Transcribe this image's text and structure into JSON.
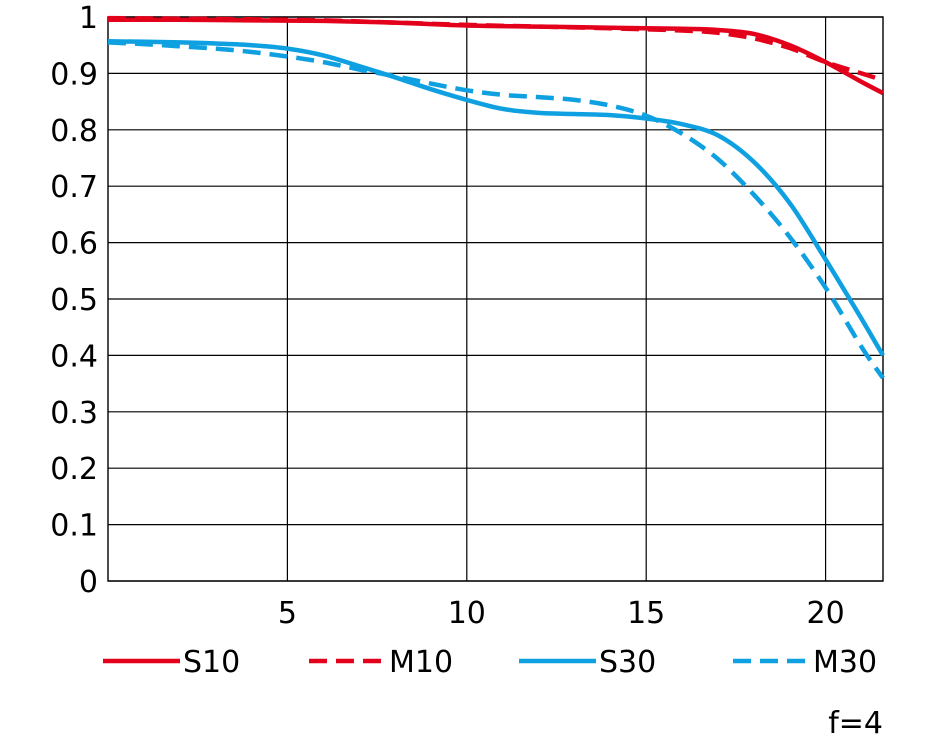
{
  "chart_data": {
    "type": "line",
    "title": "",
    "xlabel": "",
    "ylabel": "",
    "xlim": [
      0,
      21.6
    ],
    "ylim": [
      0,
      1
    ],
    "x_ticks": [
      5,
      10,
      15,
      20
    ],
    "y_ticks": [
      0,
      0.1,
      0.2,
      0.3,
      0.4,
      0.5,
      0.6,
      0.7,
      0.8,
      0.9,
      1
    ],
    "x_tick_labels": [
      "5",
      "10",
      "15",
      "20"
    ],
    "y_tick_labels": [
      "0",
      "0.1",
      "0.2",
      "0.3",
      "0.4",
      "0.5",
      "0.6",
      "0.7",
      "0.8",
      "0.9",
      "1"
    ],
    "grid": true,
    "legend_position": "bottom",
    "annotation": "f=4",
    "colors": {
      "red": "#e3001b",
      "blue": "#0ea0e0",
      "grid": "#000000"
    },
    "series": [
      {
        "name": "S10",
        "color": "#e3001b",
        "dash": "solid",
        "points": [
          [
            0,
            0.995
          ],
          [
            2,
            0.995
          ],
          [
            4,
            0.994
          ],
          [
            6,
            0.993
          ],
          [
            8,
            0.99
          ],
          [
            10,
            0.985
          ],
          [
            12,
            0.983
          ],
          [
            14,
            0.981
          ],
          [
            16,
            0.979
          ],
          [
            17,
            0.977
          ],
          [
            18,
            0.97
          ],
          [
            19,
            0.95
          ],
          [
            20,
            0.92
          ],
          [
            21,
            0.885
          ],
          [
            21.6,
            0.865
          ]
        ]
      },
      {
        "name": "M10",
        "color": "#e3001b",
        "dash": "dashed",
        "points": [
          [
            0,
            0.998
          ],
          [
            2,
            0.997
          ],
          [
            4,
            0.996
          ],
          [
            6,
            0.994
          ],
          [
            8,
            0.99
          ],
          [
            10,
            0.986
          ],
          [
            12,
            0.983
          ],
          [
            14,
            0.98
          ],
          [
            16,
            0.976
          ],
          [
            17,
            0.972
          ],
          [
            18,
            0.962
          ],
          [
            19,
            0.945
          ],
          [
            20,
            0.92
          ],
          [
            21,
            0.9
          ],
          [
            21.6,
            0.888
          ]
        ]
      },
      {
        "name": "S30",
        "color": "#0ea0e0",
        "dash": "solid",
        "points": [
          [
            0,
            0.957
          ],
          [
            2,
            0.955
          ],
          [
            3,
            0.953
          ],
          [
            4,
            0.95
          ],
          [
            5,
            0.944
          ],
          [
            6,
            0.932
          ],
          [
            7,
            0.913
          ],
          [
            8,
            0.893
          ],
          [
            9,
            0.872
          ],
          [
            10,
            0.853
          ],
          [
            11,
            0.837
          ],
          [
            12,
            0.83
          ],
          [
            13,
            0.828
          ],
          [
            14,
            0.826
          ],
          [
            15,
            0.82
          ],
          [
            16,
            0.81
          ],
          [
            17,
            0.79
          ],
          [
            18,
            0.743
          ],
          [
            19,
            0.67
          ],
          [
            20,
            0.57
          ],
          [
            21,
            0.465
          ],
          [
            21.6,
            0.4
          ]
        ]
      },
      {
        "name": "M30",
        "color": "#0ea0e0",
        "dash": "dashed",
        "points": [
          [
            0,
            0.955
          ],
          [
            1,
            0.952
          ],
          [
            2,
            0.948
          ],
          [
            3,
            0.944
          ],
          [
            4,
            0.938
          ],
          [
            5,
            0.93
          ],
          [
            6,
            0.92
          ],
          [
            7,
            0.907
          ],
          [
            8,
            0.895
          ],
          [
            9,
            0.882
          ],
          [
            10,
            0.87
          ],
          [
            11,
            0.862
          ],
          [
            12,
            0.858
          ],
          [
            13,
            0.853
          ],
          [
            14,
            0.843
          ],
          [
            15,
            0.825
          ],
          [
            16,
            0.793
          ],
          [
            17,
            0.748
          ],
          [
            18,
            0.685
          ],
          [
            19,
            0.61
          ],
          [
            20,
            0.52
          ],
          [
            21,
            0.415
          ],
          [
            21.6,
            0.36
          ]
        ]
      }
    ]
  }
}
